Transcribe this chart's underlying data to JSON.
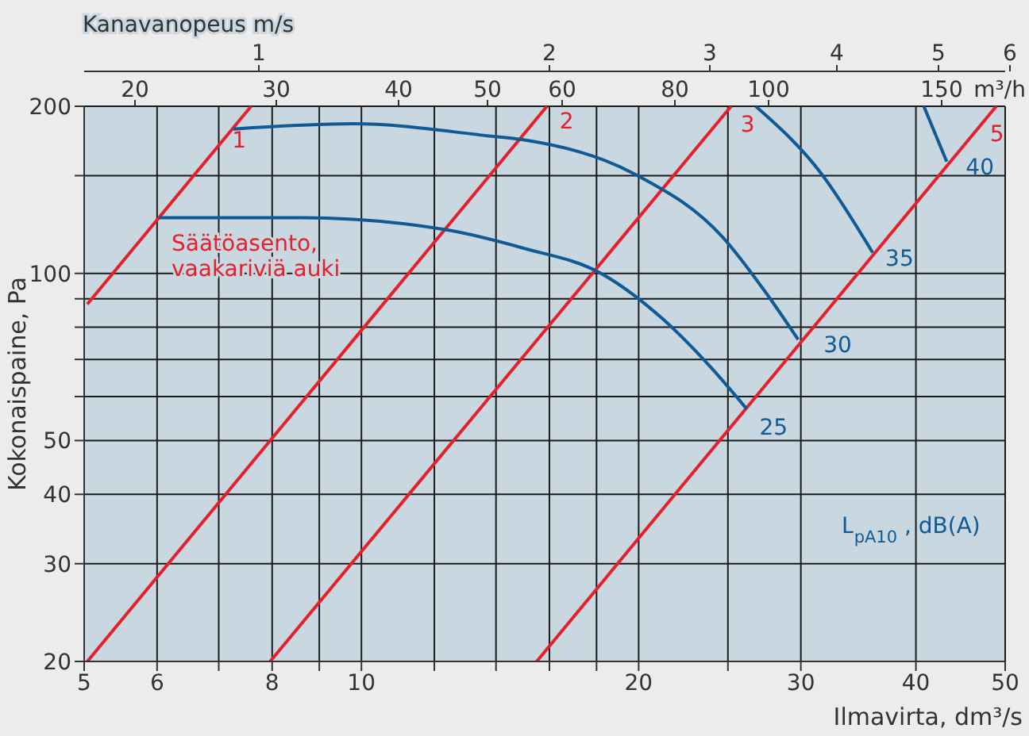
{
  "chart_data": {
    "type": "line",
    "xlabel": "Ilmavirta, dm³/s",
    "ylabel": "Kokonaispaine, Pa",
    "log": "xy",
    "grid": true,
    "marker": "none",
    "line_style": "solid",
    "xlim": [
      5,
      50
    ],
    "xticks": [
      5,
      6,
      {
        "value": 7,
        "label": null
      },
      8,
      {
        "value": 9,
        "label": null
      },
      10,
      {
        "value": 12,
        "label": null
      },
      {
        "value": 14,
        "label": null
      },
      {
        "value": 16,
        "label": null
      },
      {
        "value": 18,
        "label": null
      },
      20,
      {
        "value": 25,
        "label": null
      },
      30,
      40,
      50
    ],
    "ylim": [
      20,
      200
    ],
    "yticks": [
      20,
      30,
      40,
      50,
      {
        "value": 60,
        "label": null
      },
      {
        "value": 70,
        "label": null
      },
      {
        "value": 80,
        "label": null
      },
      {
        "value": 90,
        "label": null
      },
      100,
      {
        "value": 150,
        "label": null
      },
      200
    ],
    "series": [
      {
        "name": "1",
        "color": "#e3202b",
        "x": [
          5.04,
          7.59
        ],
        "values": [
          88,
          200
        ]
      },
      {
        "name": "2",
        "color": "#e3202b",
        "x": [
          5.04,
          15.9
        ],
        "values": [
          20,
          200
        ]
      },
      {
        "name": "3",
        "color": "#e3202b",
        "x": [
          7.96,
          25.2
        ],
        "values": [
          20,
          200
        ]
      },
      {
        "name": "5",
        "color": "#e3202b",
        "x": [
          15.5,
          48.9
        ],
        "values": [
          20,
          200
        ]
      },
      {
        "name": "25",
        "color": "#105a95",
        "x": [
          6.03,
          8.6,
          12.3,
          15,
          18.2,
          21.2,
          23.9,
          26.2
        ],
        "values": [
          126,
          126,
          120,
          111,
          100,
          83,
          68,
          57
        ]
      },
      {
        "name": "30",
        "color": "#105a95",
        "x": [
          7.26,
          9.8,
          13.7,
          15,
          19.8,
          24.7,
          27.4,
          29.8
        ],
        "values": [
          182,
          186,
          177,
          174,
          151,
          116,
          93,
          76
        ]
      },
      {
        "name": "35",
        "color": "#105a95",
        "x": [
          26.8,
          31.6,
          35.9
        ],
        "values": [
          200,
          151,
          109
        ]
      },
      {
        "name": "40",
        "color": "#105a95",
        "x": [
          40.8,
          43.2
        ],
        "values": [
          200,
          159
        ]
      }
    ],
    "annotations": [
      "Säätöasento,\nvaakariviä auki",
      "L$_{pA10}$, dB(A)",
      "Kanavanopeus m/s",
      "1",
      "2",
      "3",
      "4",
      "5",
      "6",
      "20",
      "30",
      "40",
      "50",
      "60",
      "80",
      "100",
      "150",
      "m³/h"
    ]
  }
}
